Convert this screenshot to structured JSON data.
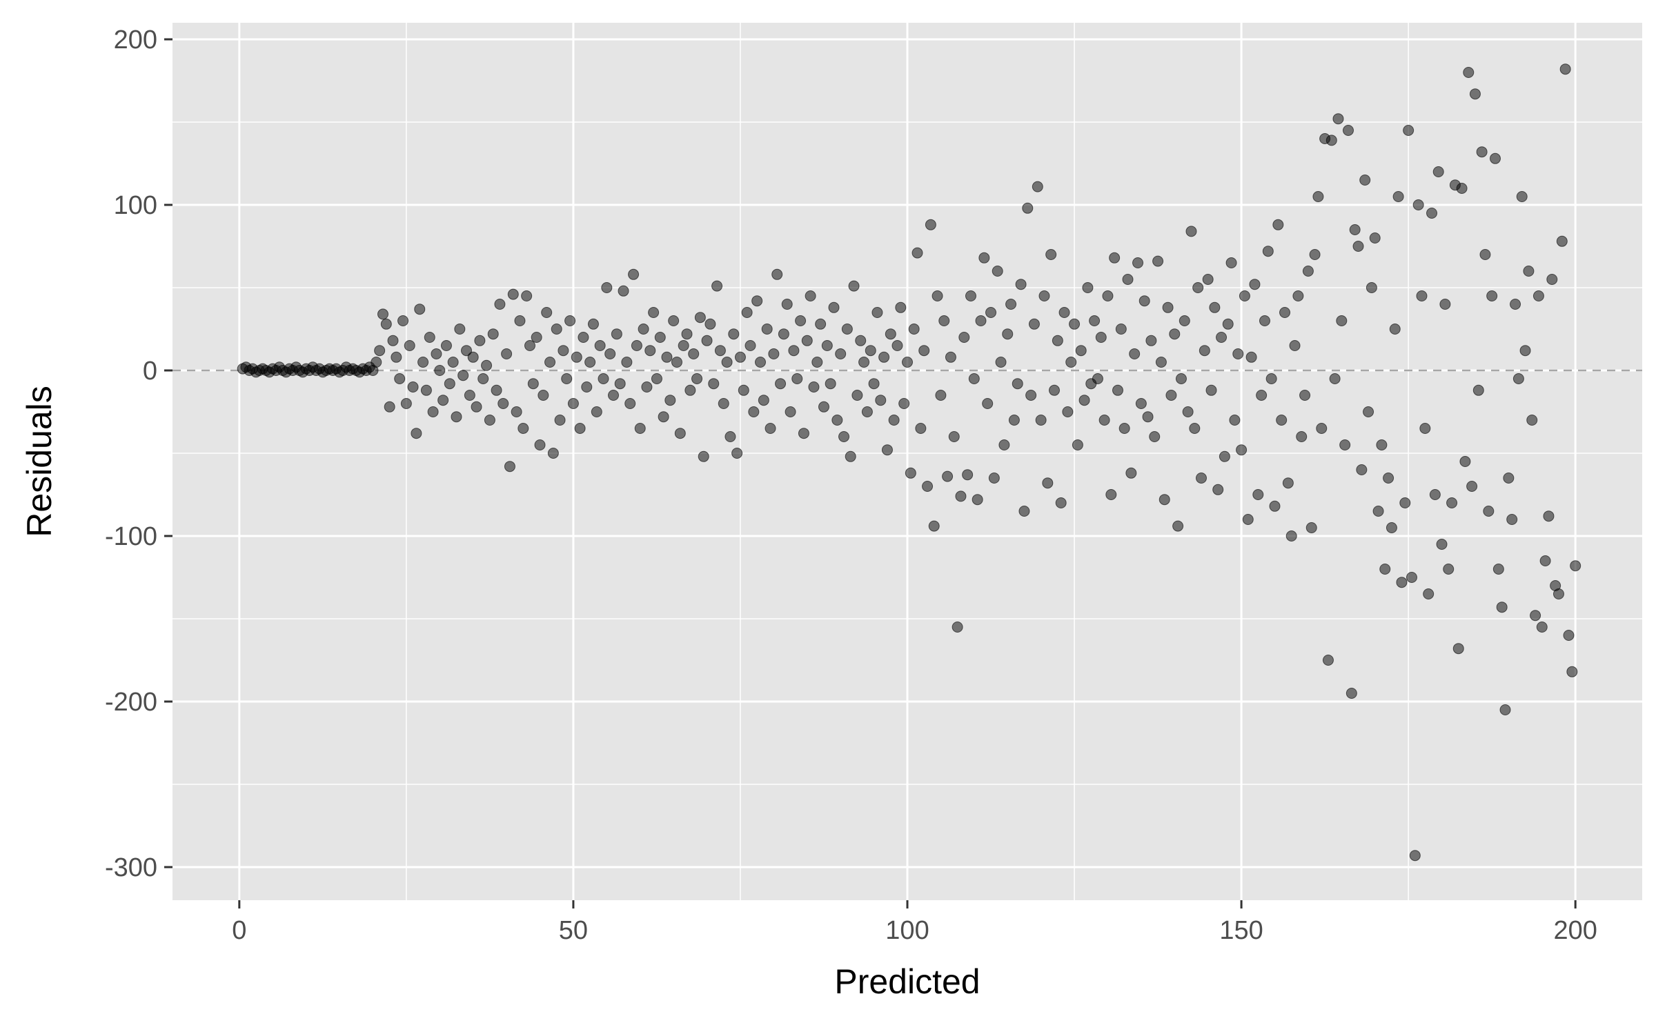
{
  "chart_data": {
    "type": "scatter",
    "title": "",
    "xlabel": "Predicted",
    "ylabel": "Residuals",
    "xlim": [
      -10,
      210
    ],
    "ylim": [
      -320,
      210
    ],
    "x_ticks": [
      0,
      50,
      100,
      150,
      200
    ],
    "y_ticks": [
      200,
      100,
      0,
      -100,
      -200,
      -300
    ],
    "x_tick_labels": [
      "0",
      "50",
      "100",
      "150",
      "200"
    ],
    "y_tick_labels": [
      "200",
      "100",
      "0",
      "-100",
      "-200",
      "-300"
    ],
    "grid": true,
    "reference_line": {
      "y": 0,
      "style": "dashed"
    },
    "colors": {
      "panel": "#e5e5e5",
      "grid": "#ffffff",
      "point": "#000000",
      "reference": "#a6a6a6"
    },
    "points": [
      [
        0.5,
        1
      ],
      [
        1,
        2
      ],
      [
        1.5,
        0
      ],
      [
        2,
        1
      ],
      [
        2.5,
        -1
      ],
      [
        3,
        0
      ],
      [
        3.5,
        1
      ],
      [
        4,
        0
      ],
      [
        4.5,
        -1
      ],
      [
        5,
        1
      ],
      [
        5.5,
        0
      ],
      [
        6,
        2
      ],
      [
        6.5,
        0
      ],
      [
        7,
        -1
      ],
      [
        7.5,
        1
      ],
      [
        8,
        0
      ],
      [
        8.5,
        2
      ],
      [
        9,
        0
      ],
      [
        9.5,
        -1
      ],
      [
        10,
        1
      ],
      [
        10.5,
        0
      ],
      [
        11,
        2
      ],
      [
        11.5,
        0
      ],
      [
        12,
        1
      ],
      [
        12.5,
        -1
      ],
      [
        13,
        0
      ],
      [
        13.5,
        1
      ],
      [
        14,
        0
      ],
      [
        14.5,
        1
      ],
      [
        15,
        -1
      ],
      [
        15.5,
        0
      ],
      [
        16,
        2
      ],
      [
        16.5,
        0
      ],
      [
        17,
        1
      ],
      [
        17.5,
        0
      ],
      [
        18,
        -1
      ],
      [
        18.5,
        1
      ],
      [
        19,
        0
      ],
      [
        19.5,
        2
      ],
      [
        20,
        0
      ],
      [
        20.5,
        5
      ],
      [
        21,
        12
      ],
      [
        21.5,
        34
      ],
      [
        22,
        28
      ],
      [
        22.5,
        -22
      ],
      [
        23,
        18
      ],
      [
        23.5,
        8
      ],
      [
        24,
        -5
      ],
      [
        24.5,
        30
      ],
      [
        25,
        -20
      ],
      [
        25.5,
        15
      ],
      [
        26,
        -10
      ],
      [
        26.5,
        -38
      ],
      [
        27,
        37
      ],
      [
        27.5,
        5
      ],
      [
        28,
        -12
      ],
      [
        28.5,
        20
      ],
      [
        29,
        -25
      ],
      [
        29.5,
        10
      ],
      [
        30,
        0
      ],
      [
        30.5,
        -18
      ],
      [
        31,
        15
      ],
      [
        31.5,
        -8
      ],
      [
        32,
        5
      ],
      [
        32.5,
        -28
      ],
      [
        33,
        25
      ],
      [
        33.5,
        -3
      ],
      [
        34,
        12
      ],
      [
        34.5,
        -15
      ],
      [
        35,
        8
      ],
      [
        35.5,
        -22
      ],
      [
        36,
        18
      ],
      [
        36.5,
        -5
      ],
      [
        37,
        3
      ],
      [
        37.5,
        -30
      ],
      [
        38,
        22
      ],
      [
        38.5,
        -12
      ],
      [
        39,
        40
      ],
      [
        39.5,
        -20
      ],
      [
        40,
        10
      ],
      [
        40.5,
        -58
      ],
      [
        41,
        46
      ],
      [
        41.5,
        -25
      ],
      [
        42,
        30
      ],
      [
        42.5,
        -35
      ],
      [
        43,
        45
      ],
      [
        43.5,
        15
      ],
      [
        44,
        -8
      ],
      [
        44.5,
        20
      ],
      [
        45,
        -45
      ],
      [
        45.5,
        -15
      ],
      [
        46,
        35
      ],
      [
        46.5,
        5
      ],
      [
        47,
        -50
      ],
      [
        47.5,
        25
      ],
      [
        48,
        -30
      ],
      [
        48.5,
        12
      ],
      [
        49,
        -5
      ],
      [
        49.5,
        30
      ],
      [
        50,
        -20
      ],
      [
        50.5,
        8
      ],
      [
        51,
        -35
      ],
      [
        51.5,
        20
      ],
      [
        52,
        -10
      ],
      [
        52.5,
        5
      ],
      [
        53,
        28
      ],
      [
        53.5,
        -25
      ],
      [
        54,
        15
      ],
      [
        54.5,
        -5
      ],
      [
        55,
        50
      ],
      [
        55.5,
        10
      ],
      [
        56,
        -15
      ],
      [
        56.5,
        22
      ],
      [
        57,
        -8
      ],
      [
        57.5,
        48
      ],
      [
        58,
        5
      ],
      [
        58.5,
        -20
      ],
      [
        59,
        58
      ],
      [
        59.5,
        15
      ],
      [
        60,
        -35
      ],
      [
        60.5,
        25
      ],
      [
        61,
        -10
      ],
      [
        61.5,
        12
      ],
      [
        62,
        35
      ],
      [
        62.5,
        -5
      ],
      [
        63,
        20
      ],
      [
        63.5,
        -28
      ],
      [
        64,
        8
      ],
      [
        64.5,
        -18
      ],
      [
        65,
        30
      ],
      [
        65.5,
        5
      ],
      [
        66,
        -38
      ],
      [
        66.5,
        15
      ],
      [
        67,
        22
      ],
      [
        67.5,
        -12
      ],
      [
        68,
        10
      ],
      [
        68.5,
        -5
      ],
      [
        69,
        32
      ],
      [
        69.5,
        -52
      ],
      [
        70,
        18
      ],
      [
        70.5,
        28
      ],
      [
        71,
        -8
      ],
      [
        71.5,
        51
      ],
      [
        72,
        12
      ],
      [
        72.5,
        -20
      ],
      [
        73,
        5
      ],
      [
        73.5,
        -40
      ],
      [
        74,
        22
      ],
      [
        74.5,
        -50
      ],
      [
        75,
        8
      ],
      [
        75.5,
        -12
      ],
      [
        76,
        35
      ],
      [
        76.5,
        15
      ],
      [
        77,
        -25
      ],
      [
        77.5,
        42
      ],
      [
        78,
        5
      ],
      [
        78.5,
        -18
      ],
      [
        79,
        25
      ],
      [
        79.5,
        -35
      ],
      [
        80,
        10
      ],
      [
        80.5,
        58
      ],
      [
        81,
        -8
      ],
      [
        81.5,
        22
      ],
      [
        82,
        40
      ],
      [
        82.5,
        -25
      ],
      [
        83,
        12
      ],
      [
        83.5,
        -5
      ],
      [
        84,
        30
      ],
      [
        84.5,
        -38
      ],
      [
        85,
        18
      ],
      [
        85.5,
        45
      ],
      [
        86,
        -10
      ],
      [
        86.5,
        5
      ],
      [
        87,
        28
      ],
      [
        87.5,
        -22
      ],
      [
        88,
        15
      ],
      [
        88.5,
        -8
      ],
      [
        89,
        38
      ],
      [
        89.5,
        -30
      ],
      [
        90,
        10
      ],
      [
        90.5,
        -40
      ],
      [
        91,
        25
      ],
      [
        91.5,
        -52
      ],
      [
        92,
        51
      ],
      [
        92.5,
        -15
      ],
      [
        93,
        18
      ],
      [
        93.5,
        5
      ],
      [
        94,
        -25
      ],
      [
        94.5,
        12
      ],
      [
        95,
        -8
      ],
      [
        95.5,
        35
      ],
      [
        96,
        -18
      ],
      [
        96.5,
        8
      ],
      [
        97,
        -48
      ],
      [
        97.5,
        22
      ],
      [
        98,
        -30
      ],
      [
        98.5,
        15
      ],
      [
        99,
        38
      ],
      [
        99.5,
        -20
      ],
      [
        100,
        5
      ],
      [
        100.5,
        -62
      ],
      [
        101,
        25
      ],
      [
        101.5,
        71
      ],
      [
        102,
        -35
      ],
      [
        102.5,
        12
      ],
      [
        103,
        -70
      ],
      [
        103.5,
        88
      ],
      [
        104,
        -94
      ],
      [
        104.5,
        45
      ],
      [
        105,
        -15
      ],
      [
        105.5,
        30
      ],
      [
        106,
        -64
      ],
      [
        106.5,
        8
      ],
      [
        107,
        -40
      ],
      [
        107.5,
        -155
      ],
      [
        108,
        -76
      ],
      [
        108.5,
        20
      ],
      [
        109,
        -63
      ],
      [
        109.5,
        45
      ],
      [
        110,
        -5
      ],
      [
        110.5,
        -78
      ],
      [
        111,
        30
      ],
      [
        111.5,
        68
      ],
      [
        112,
        -20
      ],
      [
        112.5,
        35
      ],
      [
        113,
        -65
      ],
      [
        113.5,
        60
      ],
      [
        114,
        5
      ],
      [
        114.5,
        -45
      ],
      [
        115,
        22
      ],
      [
        115.5,
        40
      ],
      [
        116,
        -30
      ],
      [
        116.5,
        -8
      ],
      [
        117,
        52
      ],
      [
        117.5,
        -85
      ],
      [
        118,
        98
      ],
      [
        118.5,
        -15
      ],
      [
        119,
        28
      ],
      [
        119.5,
        111
      ],
      [
        120,
        -30
      ],
      [
        120.5,
        45
      ],
      [
        121,
        -68
      ],
      [
        121.5,
        70
      ],
      [
        122,
        -12
      ],
      [
        122.5,
        18
      ],
      [
        123,
        -80
      ],
      [
        123.5,
        35
      ],
      [
        124,
        -25
      ],
      [
        124.5,
        5
      ],
      [
        125,
        28
      ],
      [
        125.5,
        -45
      ],
      [
        126,
        12
      ],
      [
        126.5,
        -18
      ],
      [
        127,
        50
      ],
      [
        127.5,
        -8
      ],
      [
        128,
        30
      ],
      [
        128.5,
        -5
      ],
      [
        129,
        20
      ],
      [
        129.5,
        -30
      ],
      [
        130,
        45
      ],
      [
        130.5,
        -75
      ],
      [
        131,
        68
      ],
      [
        131.5,
        -12
      ],
      [
        132,
        25
      ],
      [
        132.5,
        -35
      ],
      [
        133,
        55
      ],
      [
        133.5,
        -62
      ],
      [
        134,
        10
      ],
      [
        134.5,
        65
      ],
      [
        135,
        -20
      ],
      [
        135.5,
        42
      ],
      [
        136,
        -28
      ],
      [
        136.5,
        18
      ],
      [
        137,
        -40
      ],
      [
        137.5,
        66
      ],
      [
        138,
        5
      ],
      [
        138.5,
        -78
      ],
      [
        139,
        38
      ],
      [
        139.5,
        -15
      ],
      [
        140,
        22
      ],
      [
        140.5,
        -94
      ],
      [
        141,
        -5
      ],
      [
        141.5,
        30
      ],
      [
        142,
        -25
      ],
      [
        142.5,
        84
      ],
      [
        143,
        -35
      ],
      [
        143.5,
        50
      ],
      [
        144,
        -65
      ],
      [
        144.5,
        12
      ],
      [
        145,
        55
      ],
      [
        145.5,
        -12
      ],
      [
        146,
        38
      ],
      [
        146.5,
        -72
      ],
      [
        147,
        20
      ],
      [
        147.5,
        -52
      ],
      [
        148,
        28
      ],
      [
        148.5,
        65
      ],
      [
        149,
        -30
      ],
      [
        149.5,
        10
      ],
      [
        150,
        -48
      ],
      [
        150.5,
        45
      ],
      [
        151,
        -90
      ],
      [
        151.5,
        8
      ],
      [
        152,
        52
      ],
      [
        152.5,
        -75
      ],
      [
        153,
        -15
      ],
      [
        153.5,
        30
      ],
      [
        154,
        72
      ],
      [
        154.5,
        -5
      ],
      [
        155,
        -82
      ],
      [
        155.5,
        88
      ],
      [
        156,
        -30
      ],
      [
        156.5,
        35
      ],
      [
        157,
        -68
      ],
      [
        157.5,
        -100
      ],
      [
        158,
        15
      ],
      [
        158.5,
        45
      ],
      [
        159,
        -40
      ],
      [
        159.5,
        -15
      ],
      [
        160,
        60
      ],
      [
        160.5,
        -95
      ],
      [
        161,
        70
      ],
      [
        161.5,
        105
      ],
      [
        162,
        -35
      ],
      [
        162.5,
        140
      ],
      [
        163,
        -175
      ],
      [
        163.5,
        139
      ],
      [
        164,
        -5
      ],
      [
        164.5,
        152
      ],
      [
        165,
        30
      ],
      [
        165.5,
        -45
      ],
      [
        166,
        145
      ],
      [
        166.5,
        -195
      ],
      [
        167,
        85
      ],
      [
        167.5,
        75
      ],
      [
        168,
        -60
      ],
      [
        168.5,
        115
      ],
      [
        169,
        -25
      ],
      [
        169.5,
        50
      ],
      [
        170,
        80
      ],
      [
        170.5,
        -85
      ],
      [
        171,
        -45
      ],
      [
        171.5,
        -120
      ],
      [
        172,
        -65
      ],
      [
        172.5,
        -95
      ],
      [
        173,
        25
      ],
      [
        173.5,
        105
      ],
      [
        174,
        -128
      ],
      [
        174.5,
        -80
      ],
      [
        175,
        145
      ],
      [
        175.5,
        -125
      ],
      [
        176,
        -293
      ],
      [
        176.5,
        100
      ],
      [
        177,
        45
      ],
      [
        177.5,
        -35
      ],
      [
        178,
        -135
      ],
      [
        178.5,
        95
      ],
      [
        179,
        -75
      ],
      [
        179.5,
        120
      ],
      [
        180,
        -105
      ],
      [
        180.5,
        40
      ],
      [
        181,
        -120
      ],
      [
        181.5,
        -80
      ],
      [
        182,
        112
      ],
      [
        182.5,
        -168
      ],
      [
        183,
        110
      ],
      [
        183.5,
        -55
      ],
      [
        184,
        180
      ],
      [
        184.5,
        -70
      ],
      [
        185,
        167
      ],
      [
        185.5,
        -12
      ],
      [
        186,
        132
      ],
      [
        186.5,
        70
      ],
      [
        187,
        -85
      ],
      [
        187.5,
        45
      ],
      [
        188,
        128
      ],
      [
        188.5,
        -120
      ],
      [
        189,
        -143
      ],
      [
        189.5,
        -205
      ],
      [
        190,
        -65
      ],
      [
        190.5,
        -90
      ],
      [
        191,
        40
      ],
      [
        191.5,
        -5
      ],
      [
        192,
        105
      ],
      [
        192.5,
        12
      ],
      [
        193,
        60
      ],
      [
        193.5,
        -30
      ],
      [
        194,
        -148
      ],
      [
        194.5,
        45
      ],
      [
        195,
        -155
      ],
      [
        195.5,
        -115
      ],
      [
        196,
        -88
      ],
      [
        196.5,
        55
      ],
      [
        197,
        -130
      ],
      [
        197.5,
        -135
      ],
      [
        198,
        78
      ],
      [
        198.5,
        182
      ],
      [
        199,
        -160
      ],
      [
        199.5,
        -182
      ],
      [
        200,
        -118
      ]
    ]
  }
}
